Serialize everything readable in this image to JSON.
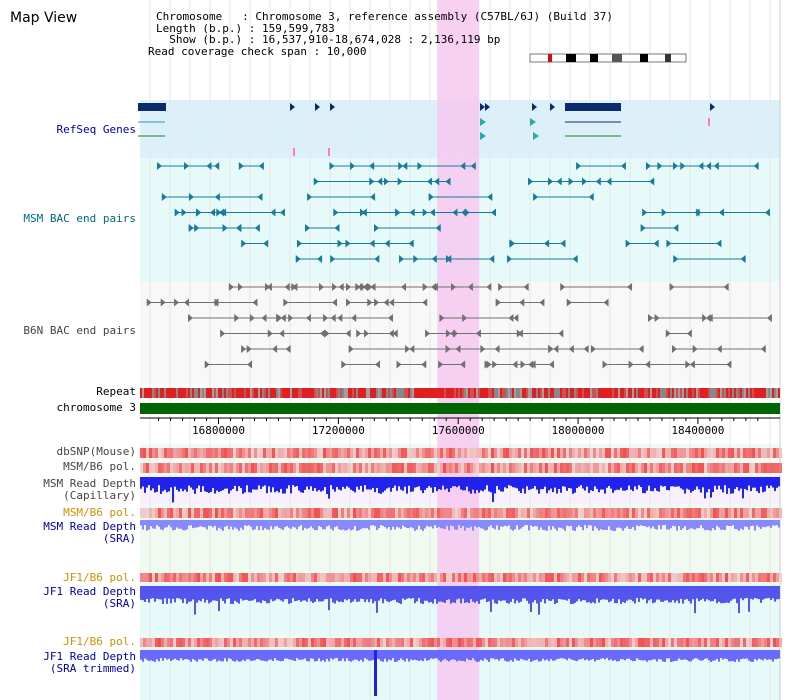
{
  "view": {
    "title": "Map View"
  },
  "info": {
    "chromosome": "Chromosome   : Chromosome 3, reference assembly (C57BL/6J) (Build 37)",
    "length": "Length (b.p.) : 159,599,783",
    "show": "  Show (b.p.) : 16,537,910-18,674,028 : 2,136,119 bp",
    "span": "Read coverage check span : 10,000"
  },
  "tracks": {
    "refseq": "RefSeq Genes",
    "msm_bac": "MSM BAC end pairs",
    "b6n_bac": "B6N BAC end pairs",
    "repeat": "Repeat",
    "chromosome": "chromosome 3",
    "dbsnp": "dbSNP(Mouse)",
    "msm_b6_pol": "MSM/B6 pol.",
    "msm_depth_cap_1": "MSM Read Depth",
    "msm_depth_cap_2": "(Capillary)",
    "msm_b6_pol2": "MSM/B6 pol.",
    "msm_depth_sra_1": "MSM Read Depth",
    "msm_depth_sra_2": "(SRA)",
    "jf1_b6_pol": "JF1/B6 pol.",
    "jf1_depth_sra_1": "JF1 Read Depth",
    "jf1_depth_sra_2": "(SRA)",
    "jf1_b6_pol2": "JF1/B6 pol.",
    "jf1_depth_trim_1": "JF1 Read Depth",
    "jf1_depth_trim_2": "(SRA trimmed)"
  },
  "axis": {
    "ticks": [
      {
        "value": 16800000,
        "label": "16800000"
      },
      {
        "value": 17200000,
        "label": "17200000"
      },
      {
        "value": 17600000,
        "label": "17600000"
      },
      {
        "value": 18000000,
        "label": "18000000"
      },
      {
        "value": 18400000,
        "label": "18400000"
      }
    ],
    "start": 16537910,
    "end": 18674028
  },
  "highlight": {
    "start": 17530000,
    "end": 17670000,
    "color": "#f6c8f0"
  },
  "colors": {
    "refseq_bg": "#dcf0fa",
    "msm_bg": "#e6fafa",
    "b6n_bg": "#f8f8f8",
    "gene": "#0a2a6e",
    "msm_feature": "#1a7a9a",
    "b6n_feature": "#707070",
    "chrom": "#006400",
    "depth_blue": "#2222ee",
    "depth_light": "#8888ff"
  }
}
